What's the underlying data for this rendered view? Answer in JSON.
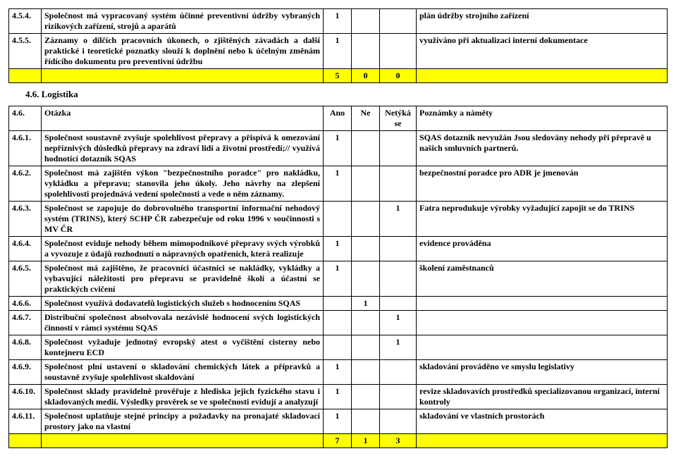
{
  "table1": {
    "rows": [
      {
        "num": "4.5.4.",
        "text": "Společnost má vypracovaný systém účinné preventivní údržby vybraných rizikových zařízení, strojů a aparátů",
        "ano": "1",
        "ne": "",
        "netyka": "",
        "notes": "plán údržby strojního zařízení"
      },
      {
        "num": "4.5.5.",
        "text": "Záznamy o dílčích pracovních úkonech, o zjištěných závadách a další praktické i teoretické poznatky slouží k doplnění nebo k účelným změnám řídícího dokumentu pro preventivní údržbu",
        "ano": "1",
        "ne": "",
        "netyka": "",
        "notes": "využíváno při aktualizaci interní dokumentace"
      }
    ],
    "totals": {
      "ano": "5",
      "ne": "0",
      "netyka": "0"
    }
  },
  "section2": {
    "heading": "4.6. Logistika"
  },
  "table2": {
    "header": {
      "num": "4.6.",
      "text": "Otázka",
      "ano": "Ano",
      "ne": "Ne",
      "netyka": "Netýká se",
      "notes": "Poznámky a náměty"
    },
    "rows": [
      {
        "num": "4.6.1.",
        "text": "Společnost soustavně zvyšuje spolehlivost přepravy a přispívá k omezování nepříznivých důsledků přepravy na zdraví lidí a životní prostředí;// využívá hodnotící dotazník SQAS",
        "ano": "1",
        "ne": "",
        "netyka": "",
        "notes": "SQAS dotazník nevyužán Jsou sledovány nehody při přepravě u našich smluvních partnerů."
      },
      {
        "num": "4.6.2.",
        "text": "Společnost má zajištěn výkon \"bezpečnostního poradce\" pro nakládku, vykládku a přepravu; stanovila jeho úkoly. Jeho návrhy na zlepšení spolehlivosti projednává vedení společnosti a vede o něm záznamy.",
        "ano": "1",
        "ne": "",
        "netyka": "",
        "notes": "bezpečnostní poradce pro ADR je jmenován"
      },
      {
        "num": "4.6.3.",
        "text": "Společnost se zapojuje do dobrovolného transportní informační nehodový systém (TRINS), který SCHP ČR zabezpečuje od roku 1996 v součinnosti s MV ČR",
        "ano": "",
        "ne": "",
        "netyka": "1",
        "notes": "Fatra neprodukuje výrobky vyžadující zapojit se do TRINS"
      },
      {
        "num": "4.6.4.",
        "text": "Společnost eviduje nehody během mimopodnikové přepravy svých výrobků a vyvozuje z údajů rozhodnutí o nápravných opatřeních, která realizuje",
        "ano": "1",
        "ne": "",
        "netyka": "",
        "notes": "evidence prováděna"
      },
      {
        "num": "4.6.5.",
        "text": "Společnost má zajištěno, že pracovníci účastníci se nakládky, vykládky a vybavující náležitosti pro přepravu se pravidelně školí a účastní se praktických cvičení",
        "ano": "1",
        "ne": "",
        "netyka": "",
        "notes": "školení zaměstnanců"
      },
      {
        "num": "4.6.6.",
        "text": "Společnost využívá dodavatelů logistických služeb s hodnocením SQAS",
        "ano": "",
        "ne": "1",
        "netyka": "",
        "notes": ""
      },
      {
        "num": "4.6.7.",
        "text": "Distribuční společnost absolvovala nezávislé hodnocení svých logistických činností v rámci systému SQAS",
        "ano": "",
        "ne": "",
        "netyka": "1",
        "notes": ""
      },
      {
        "num": "4.6.8.",
        "text": "Společnost vyžaduje jednotný evropský atest o vyčištění cisterny nebo kontejneru ECD",
        "ano": "",
        "ne": "",
        "netyka": "1",
        "notes": ""
      },
      {
        "num": "4.6.9.",
        "text": "Společnost plní ustavení o  skladování chemických látek a přípravků a soustavně zvyšuje spolehlivost skaldování",
        "ano": "1",
        "ne": "",
        "netyka": "",
        "notes": "skladování prováděno ve smyslu legislativy"
      },
      {
        "num": "4.6.10.",
        "text": "Společnost sklady pravidelně prověřuje z hlediska jejich fyzického stavu i skladovaných medií. Výsledky prověrek se ve společnosti evidují a analyzují",
        "ano": "1",
        "ne": "",
        "netyka": "",
        "notes": "revize skladovavích prostředků specializovanou organizací, interní kontroly"
      },
      {
        "num": "4.6.11.",
        "text": "Společnost uplatňuje stejné principy a požadavky na pronajaté skladovací prostory jako na vlastní",
        "ano": "1",
        "ne": "",
        "netyka": "",
        "notes": "skladování ve vlastních prostorách"
      }
    ],
    "totals": {
      "ano": "7",
      "ne": "1",
      "netyka": "3"
    }
  }
}
